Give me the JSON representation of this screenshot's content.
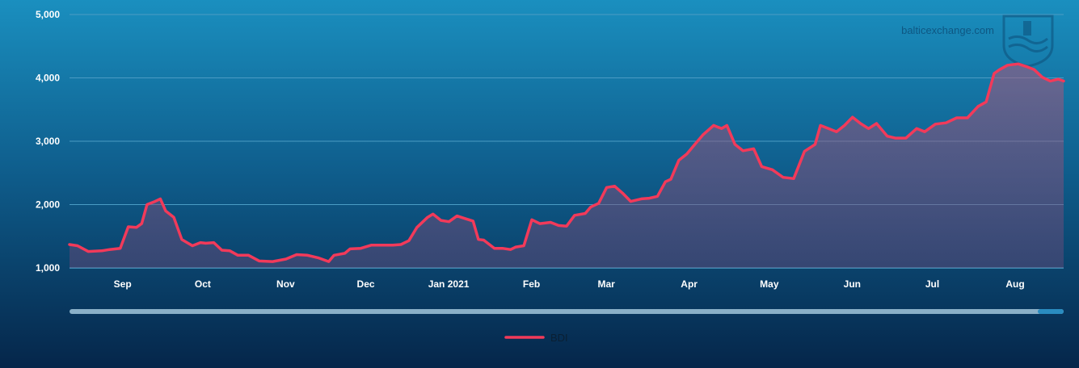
{
  "watermark": {
    "text": "balticexchange.com"
  },
  "colors": {
    "line": "#f23a5a",
    "grid": "#4a9cc4",
    "scrollbar": "#8ab0c8",
    "scroll_thumb": "#2a8cc0"
  },
  "chart_data": {
    "type": "area",
    "ylim": [
      1000,
      5000
    ],
    "yticks": [
      "1,000",
      "2,000",
      "3,000",
      "4,000",
      "5,000"
    ],
    "ytick_values": [
      1000,
      2000,
      3000,
      4000,
      5000
    ],
    "xticks": [
      "Sep",
      "Oct",
      "Nov",
      "Dec",
      "Jan 2021",
      "Feb",
      "Mar",
      "Apr",
      "May",
      "Jun",
      "Jul",
      "Aug"
    ],
    "xtick_dates": [
      "2020-09-01",
      "2020-10-01",
      "2020-11-01",
      "2020-12-01",
      "2021-01-01",
      "2021-02-01",
      "2021-03-01",
      "2021-04-01",
      "2021-05-01",
      "2021-06-01",
      "2021-07-01",
      "2021-08-01"
    ],
    "xlim": [
      "2020-08-20",
      "2021-08-27"
    ],
    "legend_position": "bottom-center",
    "series": [
      {
        "name": "BDI",
        "x": [
          "2020-08-20",
          "2020-08-23",
          "2020-08-27",
          "2020-09-01",
          "2020-09-04",
          "2020-09-08",
          "2020-09-11",
          "2020-09-14",
          "2020-09-16",
          "2020-09-18",
          "2020-09-21",
          "2020-09-23",
          "2020-09-25",
          "2020-09-28",
          "2020-10-01",
          "2020-10-05",
          "2020-10-08",
          "2020-10-10",
          "2020-10-13",
          "2020-10-16",
          "2020-10-19",
          "2020-10-22",
          "2020-10-26",
          "2020-10-30",
          "2020-11-04",
          "2020-11-09",
          "2020-11-13",
          "2020-11-17",
          "2020-11-21",
          "2020-11-25",
          "2020-11-27",
          "2020-12-01",
          "2020-12-03",
          "2020-12-07",
          "2020-12-11",
          "2020-12-15",
          "2020-12-19",
          "2020-12-22",
          "2020-12-25",
          "2020-12-28",
          "2021-01-01",
          "2021-01-03",
          "2021-01-06",
          "2021-01-09",
          "2021-01-12",
          "2021-01-15",
          "2021-01-18",
          "2021-01-20",
          "2021-01-22",
          "2021-01-26",
          "2021-01-29",
          "2021-02-01",
          "2021-02-03",
          "2021-02-06",
          "2021-02-09",
          "2021-02-12",
          "2021-02-16",
          "2021-02-19",
          "2021-02-22",
          "2021-02-25",
          "2021-03-01",
          "2021-03-03",
          "2021-03-06",
          "2021-03-09",
          "2021-03-12",
          "2021-03-15",
          "2021-03-18",
          "2021-03-22",
          "2021-03-25",
          "2021-03-28",
          "2021-03-31",
          "2021-04-02",
          "2021-04-05",
          "2021-04-08",
          "2021-04-11",
          "2021-04-14",
          "2021-04-18",
          "2021-04-21",
          "2021-04-23",
          "2021-04-26",
          "2021-04-29",
          "2021-05-03",
          "2021-05-06",
          "2021-05-10",
          "2021-05-14",
          "2021-05-18",
          "2021-05-22",
          "2021-05-26",
          "2021-05-28",
          "2021-05-31",
          "2021-06-03",
          "2021-06-06",
          "2021-06-09",
          "2021-06-12",
          "2021-06-15",
          "2021-06-18",
          "2021-06-22",
          "2021-06-25",
          "2021-06-29",
          "2021-07-03",
          "2021-07-06",
          "2021-07-10",
          "2021-07-14",
          "2021-07-18",
          "2021-07-22",
          "2021-07-26",
          "2021-07-29",
          "2021-08-01",
          "2021-08-03",
          "2021-08-06",
          "2021-08-10",
          "2021-08-13",
          "2021-08-16",
          "2021-08-19",
          "2021-08-22",
          "2021-08-25",
          "2021-08-27"
        ],
        "values": [
          1370,
          1350,
          1260,
          1270,
          1290,
          1310,
          1650,
          1640,
          1700,
          2000,
          2050,
          2090,
          1900,
          1800,
          1450,
          1350,
          1400,
          1390,
          1400,
          1280,
          1270,
          1200,
          1200,
          1110,
          1100,
          1140,
          1210,
          1200,
          1160,
          1100,
          1200,
          1230,
          1300,
          1310,
          1360,
          1360,
          1360,
          1370,
          1430,
          1640,
          1800,
          1850,
          1750,
          1730,
          1820,
          1780,
          1740,
          1450,
          1440,
          1310,
          1310,
          1290,
          1330,
          1350,
          1760,
          1700,
          1720,
          1670,
          1660,
          1830,
          1860,
          1960,
          2020,
          2270,
          2290,
          2180,
          2050,
          2090,
          2100,
          2130,
          2360,
          2400,
          2700,
          2800,
          2950,
          3100,
          3250,
          3200,
          3250,
          2950,
          2850,
          2880,
          2600,
          2550,
          2430,
          2410,
          2840,
          2950,
          3250,
          3200,
          3150,
          3250,
          3380,
          3280,
          3200,
          3280,
          3080,
          3050,
          3050,
          3200,
          3150,
          3270,
          3290,
          3370,
          3370,
          3550,
          3620,
          4070,
          4130,
          4200,
          4220,
          4180,
          4130,
          4010,
          3950,
          3980,
          3950
        ]
      }
    ]
  }
}
